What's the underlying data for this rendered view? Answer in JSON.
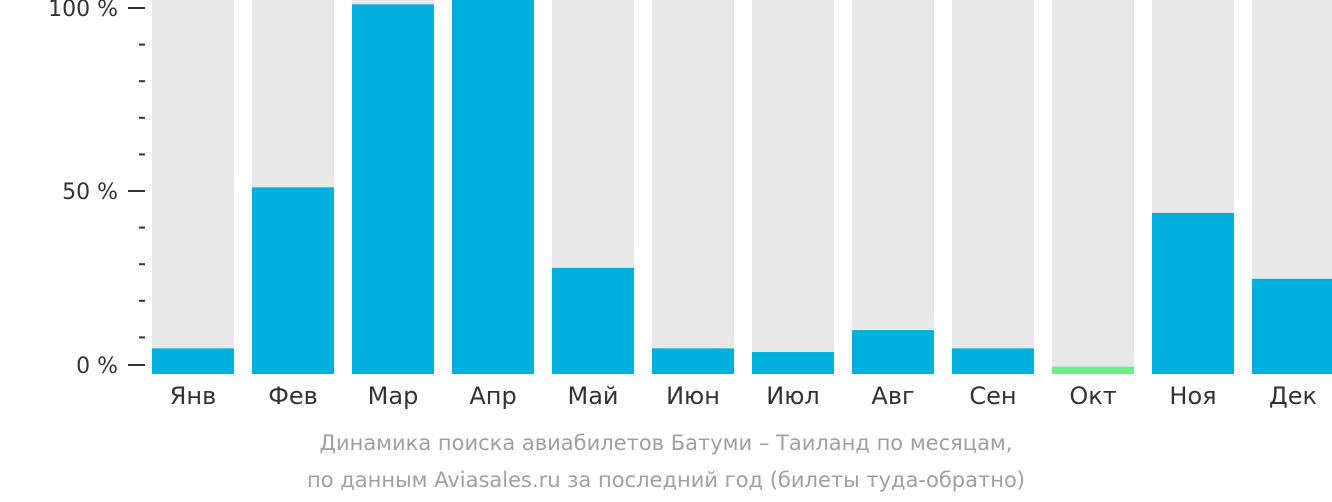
{
  "chart_data": {
    "type": "bar",
    "categories": [
      "Янв",
      "Фев",
      "Мар",
      "Апр",
      "Май",
      "Июн",
      "Июл",
      "Авг",
      "Сен",
      "Окт",
      "Ноя",
      "Дек"
    ],
    "values": [
      7,
      51,
      101,
      104,
      29,
      7,
      6,
      12,
      7,
      2,
      44,
      26
    ],
    "ylim": [
      0,
      100
    ],
    "yticks": [
      {
        "value": 0,
        "label": "0 %"
      },
      {
        "value": 50,
        "label": "50 %"
      },
      {
        "value": 100,
        "label": "100 %"
      }
    ],
    "highlight_index": 9,
    "grid": false,
    "legend": "none"
  },
  "caption": {
    "line1": "Динамика поиска авиабилетов Батуми – Таиланд по месяцам,",
    "line2": "по данным Aviasales.ru за последний год (билеты туда-обратно)"
  },
  "colors": {
    "bar": "#00b0dd",
    "highlight": "#6bef87",
    "background_bar": "#e8e8e8",
    "axis": "#333333",
    "caption": "#a0a0a0"
  }
}
